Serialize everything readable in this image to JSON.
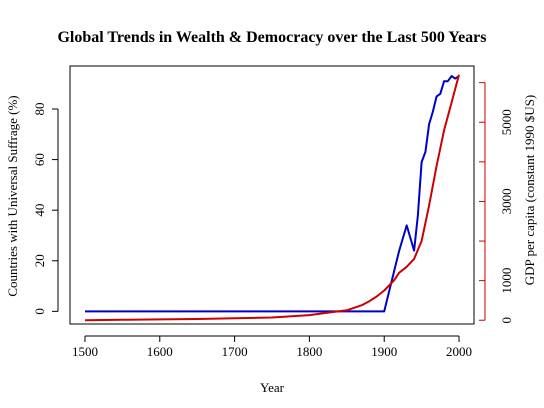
{
  "chart_data": {
    "type": "line",
    "title": "Global Trends in Wealth & Democracy over the Last 500 Years",
    "xlabel": "Year",
    "ylabel_left": "Countries with Universal Suffrage (%)",
    "ylabel_right": "GDP per capita (constant 1990 $US)",
    "xlim": [
      1480,
      2020
    ],
    "ylim_left": [
      -5,
      97
    ],
    "ylim_right": [
      -95,
      6420
    ],
    "x_ticks": [
      1500,
      1600,
      1700,
      1800,
      1900,
      2000
    ],
    "y_left_ticks": [
      0,
      20,
      40,
      60,
      80
    ],
    "y_right_ticks": [
      0,
      1000,
      3000,
      5000
    ],
    "y_right_minor_ticks": [
      0,
      1000,
      2000,
      3000,
      4000,
      5000,
      6000
    ],
    "colors": {
      "suffrage": "#0000cc",
      "gdp": "#cc0000",
      "axis": "#000000"
    },
    "series": [
      {
        "axis": "left",
        "color": "#0000cc",
        "points": [
          [
            1500,
            0
          ],
          [
            1900,
            0
          ],
          [
            1910,
            12
          ],
          [
            1920,
            24
          ],
          [
            1930,
            34
          ],
          [
            1940,
            24
          ],
          [
            1945,
            38
          ],
          [
            1950,
            59
          ],
          [
            1955,
            63
          ],
          [
            1960,
            74
          ],
          [
            1965,
            79
          ],
          [
            1970,
            85
          ],
          [
            1975,
            86
          ],
          [
            1980,
            91
          ],
          [
            1985,
            91
          ],
          [
            1990,
            93
          ],
          [
            1995,
            92
          ],
          [
            2000,
            93
          ]
        ]
      },
      {
        "axis": "right",
        "color": "#cc0000",
        "points": [
          [
            1500,
            0
          ],
          [
            1550,
            10
          ],
          [
            1600,
            20
          ],
          [
            1650,
            30
          ],
          [
            1700,
            50
          ],
          [
            1750,
            70
          ],
          [
            1800,
            130
          ],
          [
            1820,
            180
          ],
          [
            1850,
            250
          ],
          [
            1870,
            380
          ],
          [
            1880,
            480
          ],
          [
            1890,
            600
          ],
          [
            1900,
            750
          ],
          [
            1913,
            1000
          ],
          [
            1920,
            1200
          ],
          [
            1930,
            1350
          ],
          [
            1940,
            1550
          ],
          [
            1950,
            2000
          ],
          [
            1960,
            2900
          ],
          [
            1970,
            3900
          ],
          [
            1980,
            4800
          ],
          [
            1990,
            5500
          ],
          [
            2000,
            6200
          ]
        ]
      }
    ]
  }
}
